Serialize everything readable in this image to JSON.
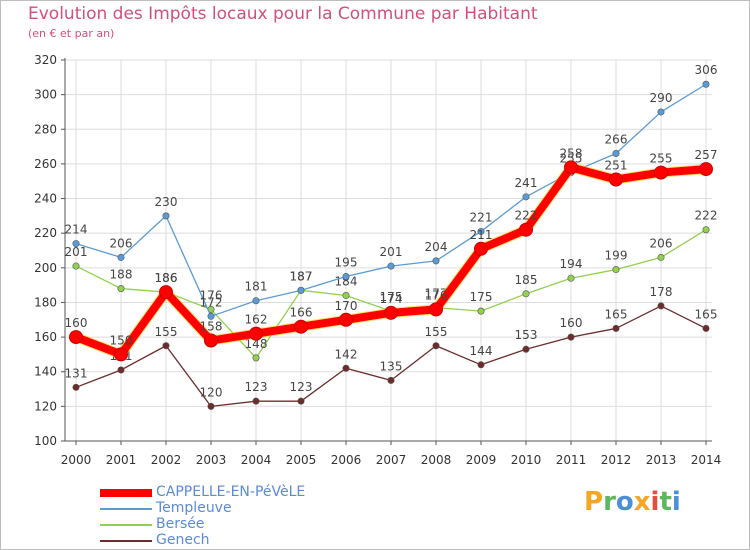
{
  "title": "Evolution des Impôts locaux pour la Commune par Habitant",
  "subtitle": "(en € et par an)",
  "logo_text": "Proxiti",
  "chart_data": {
    "type": "line",
    "title": "Evolution des Impôts locaux pour la Commune par Habitant",
    "subtitle": "(en € et par an)",
    "x": [
      "2000",
      "2001",
      "2002",
      "2003",
      "2004",
      "2005",
      "2006",
      "2007",
      "2008",
      "2009",
      "2010",
      "2011",
      "2012",
      "2013",
      "2014"
    ],
    "ylim": [
      100,
      320
    ],
    "yticks": [
      100,
      120,
      140,
      160,
      180,
      200,
      220,
      240,
      260,
      280,
      300,
      320
    ],
    "grid": true,
    "legend_position": "bottom-left",
    "series": [
      {
        "name": "CAPPELLE-EN-PéVèLE",
        "color": "#ff0000",
        "values": [
          160,
          150,
          186,
          158,
          162,
          166,
          170,
          174,
          176,
          211,
          222,
          258,
          251,
          255,
          257
        ]
      },
      {
        "name": "Templeuve",
        "color": "#5b9bd5",
        "values": [
          214,
          206,
          230,
          172,
          181,
          187,
          195,
          201,
          204,
          221,
          241,
          255,
          266,
          290,
          306
        ]
      },
      {
        "name": "Bersée",
        "color": "#92d050",
        "values": [
          201,
          188,
          186,
          176,
          148,
          187,
          184,
          175,
          177,
          175,
          185,
          194,
          199,
          206,
          222
        ]
      },
      {
        "name": "Genech",
        "color": "#6e2b2b",
        "values": [
          131,
          141,
          155,
          120,
          123,
          123,
          142,
          135,
          155,
          144,
          153,
          160,
          165,
          178,
          165
        ]
      }
    ]
  }
}
